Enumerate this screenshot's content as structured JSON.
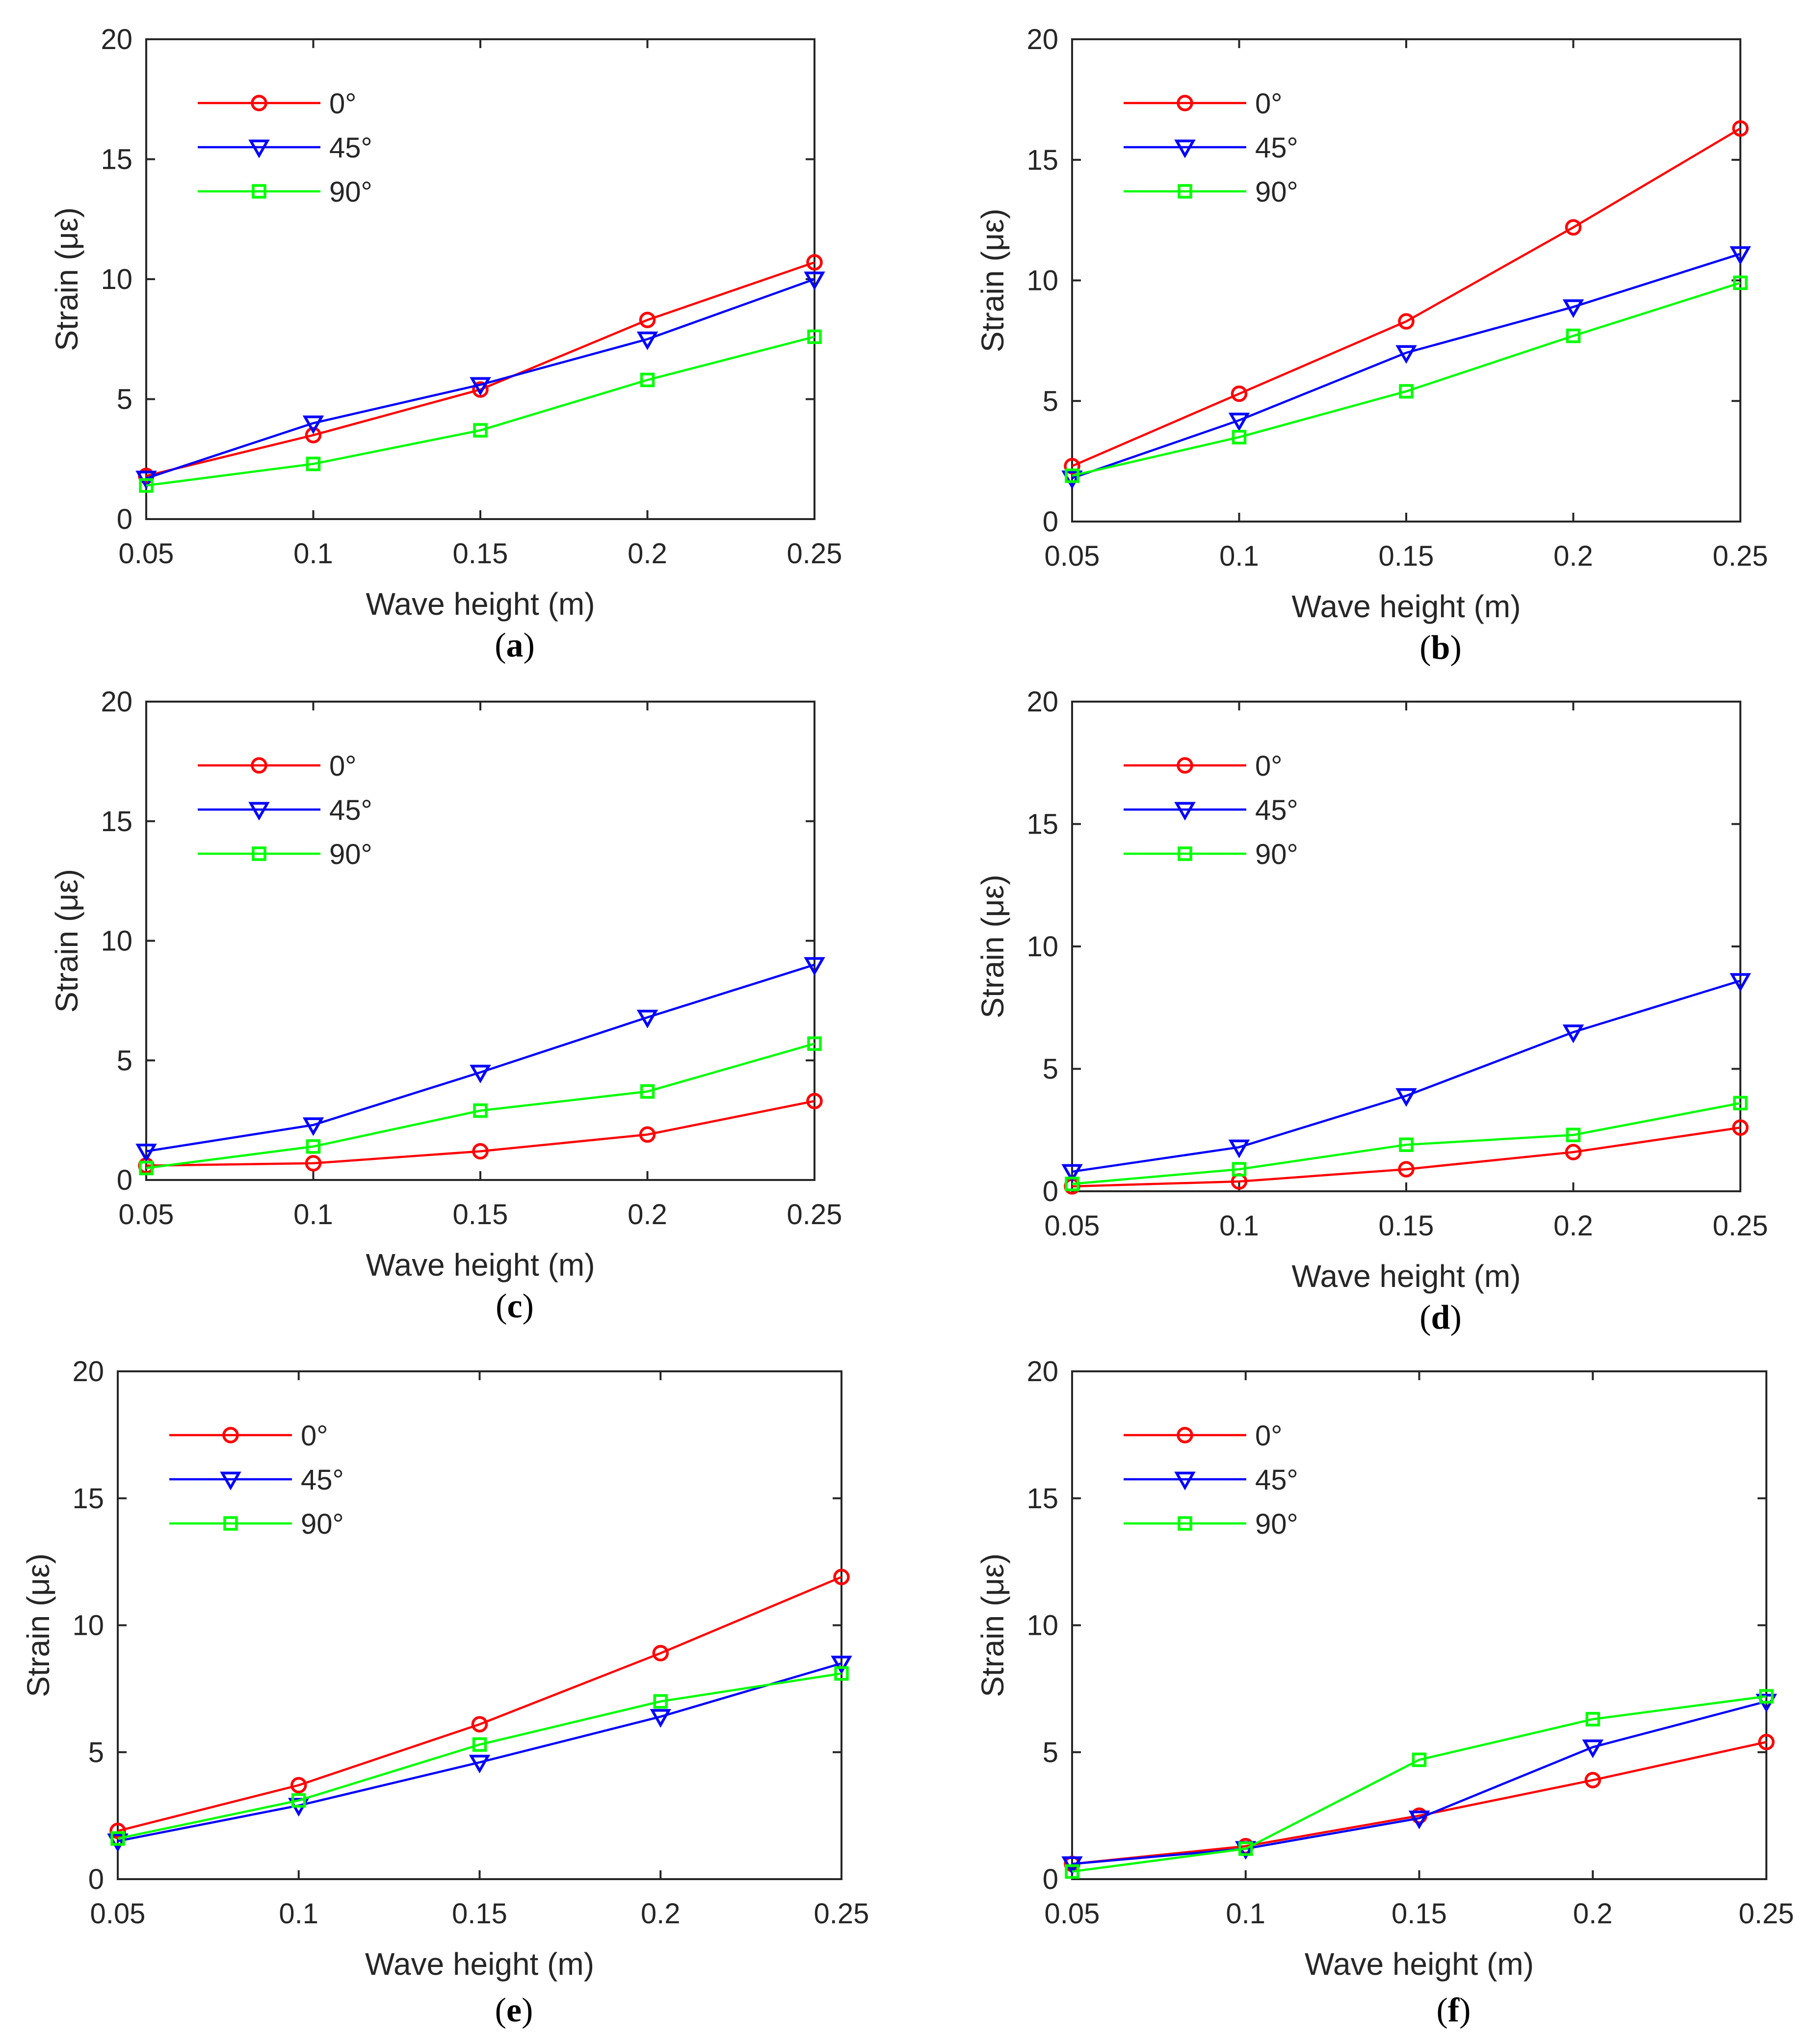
{
  "chart_data": [
    {
      "panel": "a",
      "type": "line",
      "caption_letter": "a",
      "xlabel": "Wave height (m)",
      "ylabel": "Strain (με)",
      "x": [
        0.05,
        0.1,
        0.15,
        0.2,
        0.25
      ],
      "xticks": [
        "0.05",
        "0.1",
        "0.15",
        "0.2",
        "0.25"
      ],
      "yticks": [
        "0",
        "5",
        "10",
        "15",
        "20"
      ],
      "xlim": [
        0.05,
        0.25
      ],
      "ylim": [
        0,
        20
      ],
      "legend_position": "top-left",
      "series": [
        {
          "name": "0°",
          "color": "#ff0000",
          "marker": "circle",
          "values": [
            1.8,
            3.5,
            5.4,
            8.3,
            10.7
          ]
        },
        {
          "name": "45°",
          "color": "#0000ff",
          "marker": "triangle-down",
          "values": [
            1.7,
            4.0,
            5.6,
            7.5,
            10.0
          ]
        },
        {
          "name": "90°",
          "color": "#00ff00",
          "marker": "square",
          "values": [
            1.4,
            2.3,
            3.7,
            5.8,
            7.6
          ]
        }
      ]
    },
    {
      "panel": "b",
      "type": "line",
      "caption_letter": "b",
      "xlabel": "Wave height (m)",
      "ylabel": "Strain (με)",
      "x": [
        0.05,
        0.1,
        0.15,
        0.2,
        0.25
      ],
      "xticks": [
        "0.05",
        "0.1",
        "0.15",
        "0.2",
        "0.25"
      ],
      "yticks": [
        "0",
        "5",
        "10",
        "15",
        "20"
      ],
      "xlim": [
        0.05,
        0.25
      ],
      "ylim": [
        0,
        20
      ],
      "legend_position": "top-left",
      "series": [
        {
          "name": "0°",
          "color": "#ff0000",
          "marker": "circle",
          "values": [
            2.3,
            5.3,
            8.3,
            12.2,
            16.3
          ]
        },
        {
          "name": "45°",
          "color": "#0000ff",
          "marker": "triangle-down",
          "values": [
            1.8,
            4.2,
            7.0,
            8.9,
            11.1
          ]
        },
        {
          "name": "90°",
          "color": "#00ff00",
          "marker": "square",
          "values": [
            1.9,
            3.5,
            5.4,
            7.7,
            9.9
          ]
        }
      ]
    },
    {
      "panel": "c",
      "type": "line",
      "caption_letter": "c",
      "xlabel": "Wave height (m)",
      "ylabel": "Strain (με)",
      "x": [
        0.05,
        0.1,
        0.15,
        0.2,
        0.25
      ],
      "xticks": [
        "0.05",
        "0.1",
        "0.15",
        "0.2",
        "0.25"
      ],
      "yticks": [
        "0",
        "5",
        "10",
        "15",
        "20"
      ],
      "xlim": [
        0.05,
        0.25
      ],
      "ylim": [
        0,
        20
      ],
      "legend_position": "top-left",
      "series": [
        {
          "name": "0°",
          "color": "#ff0000",
          "marker": "circle",
          "values": [
            0.6,
            0.7,
            1.2,
            1.9,
            3.3
          ]
        },
        {
          "name": "45°",
          "color": "#0000ff",
          "marker": "triangle-down",
          "values": [
            1.2,
            2.3,
            4.5,
            6.8,
            9.0
          ]
        },
        {
          "name": "90°",
          "color": "#00ff00",
          "marker": "square",
          "values": [
            0.5,
            1.4,
            2.9,
            3.7,
            5.7
          ]
        }
      ]
    },
    {
      "panel": "d",
      "type": "line",
      "caption_letter": "d",
      "xlabel": "Wave height (m)",
      "ylabel": "Strain (με)",
      "x": [
        0.05,
        0.1,
        0.15,
        0.2,
        0.25
      ],
      "xticks": [
        "0.05",
        "0.1",
        "0.15",
        "0.2",
        "0.25"
      ],
      "yticks": [
        "0",
        "5",
        "10",
        "15",
        "20"
      ],
      "xlim": [
        0.05,
        0.25
      ],
      "ylim": [
        0,
        20
      ],
      "legend_position": "top-left",
      "series": [
        {
          "name": "0°",
          "color": "#ff0000",
          "marker": "circle",
          "values": [
            0.2,
            0.4,
            0.9,
            1.6,
            2.6
          ]
        },
        {
          "name": "45°",
          "color": "#0000ff",
          "marker": "triangle-down",
          "values": [
            0.8,
            1.8,
            3.9,
            6.5,
            8.6
          ]
        },
        {
          "name": "90°",
          "color": "#00ff00",
          "marker": "square",
          "values": [
            0.3,
            0.9,
            1.9,
            2.3,
            3.6
          ]
        }
      ]
    },
    {
      "panel": "e",
      "type": "line",
      "caption_letter": "e",
      "xlabel": "Wave height (m)",
      "ylabel": "Strain (με)",
      "x": [
        0.05,
        0.1,
        0.15,
        0.2,
        0.25
      ],
      "xticks": [
        "0.05",
        "0.1",
        "0.15",
        "0.2",
        "0.25"
      ],
      "yticks": [
        "0",
        "5",
        "10",
        "15",
        "20"
      ],
      "xlim": [
        0.05,
        0.25
      ],
      "ylim": [
        0,
        20
      ],
      "legend_position": "top-left",
      "series": [
        {
          "name": "0°",
          "color": "#ff0000",
          "marker": "circle",
          "values": [
            1.9,
            3.7,
            6.1,
            8.9,
            11.9
          ]
        },
        {
          "name": "45°",
          "color": "#0000ff",
          "marker": "triangle-down",
          "values": [
            1.5,
            2.9,
            4.6,
            6.4,
            8.5
          ]
        },
        {
          "name": "90°",
          "color": "#00ff00",
          "marker": "square",
          "values": [
            1.6,
            3.1,
            5.3,
            7.0,
            8.1
          ]
        }
      ]
    },
    {
      "panel": "f",
      "type": "line",
      "caption_letter": "f",
      "xlabel": "Wave height (m)",
      "ylabel": "Strain (με)",
      "x": [
        0.05,
        0.1,
        0.15,
        0.2,
        0.25
      ],
      "xticks": [
        "0.05",
        "0.1",
        "0.15",
        "0.2",
        "0.25"
      ],
      "yticks": [
        "0",
        "5",
        "10",
        "15",
        "20"
      ],
      "xlim": [
        0.05,
        0.25
      ],
      "ylim": [
        0,
        20
      ],
      "legend_position": "top-left",
      "series": [
        {
          "name": "0°",
          "color": "#ff0000",
          "marker": "circle",
          "values": [
            0.6,
            1.3,
            2.5,
            3.9,
            5.4
          ]
        },
        {
          "name": "45°",
          "color": "#0000ff",
          "marker": "triangle-down",
          "values": [
            0.6,
            1.2,
            2.4,
            5.2,
            7.0
          ]
        },
        {
          "name": "90°",
          "color": "#00ff00",
          "marker": "square",
          "values": [
            0.3,
            1.2,
            4.7,
            6.3,
            7.2
          ]
        }
      ]
    }
  ]
}
